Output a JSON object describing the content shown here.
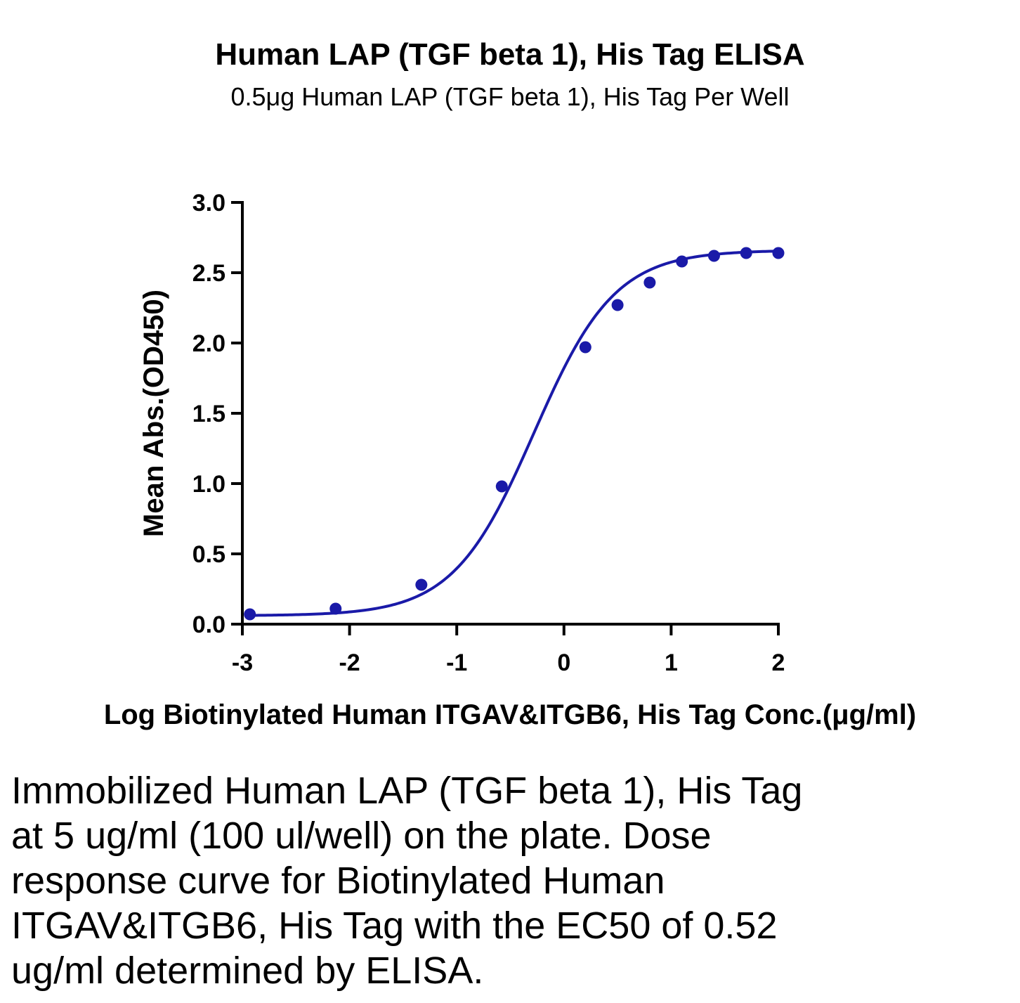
{
  "chart_data": {
    "type": "scatter",
    "title": "Human LAP (TGF beta 1), His Tag ELISA",
    "subtitle": "0.5μg Human LAP (TGF beta 1), His Tag Per Well",
    "xlabel": "Log Biotinylated Human ITGAV&ITGB6, His Tag Conc.(μg/ml)",
    "ylabel": "Mean Abs.(OD450)",
    "xlim": [
      -3,
      2
    ],
    "ylim": [
      0,
      3.0
    ],
    "x_ticks": [
      "-3",
      "-2",
      "-1",
      "0",
      "1",
      "2"
    ],
    "y_ticks": [
      "0.0",
      "0.5",
      "1.0",
      "1.5",
      "2.0",
      "2.5",
      "3.0"
    ],
    "grid": false,
    "legend": "none",
    "color": "#1a1aa8",
    "fit": "4-parameter logistic",
    "series": [
      {
        "x": [
          -2.93,
          -2.13,
          -1.33,
          -0.58,
          0.2,
          0.5,
          0.8,
          1.1,
          1.4,
          1.7,
          2.0
        ],
        "y": [
          0.07,
          0.11,
          0.28,
          0.98,
          1.97,
          2.27,
          2.43,
          2.58,
          2.62,
          2.64,
          2.64
        ]
      }
    ]
  },
  "caption": [
    "Immobilized Human LAP (TGF beta 1), His Tag",
    "at 5 ug/ml (100 ul/well) on the plate. Dose",
    "response curve for Biotinylated Human",
    "ITGAV&ITGB6, His Tag with the EC50 of 0.52",
    "ug/ml determined by ELISA."
  ]
}
